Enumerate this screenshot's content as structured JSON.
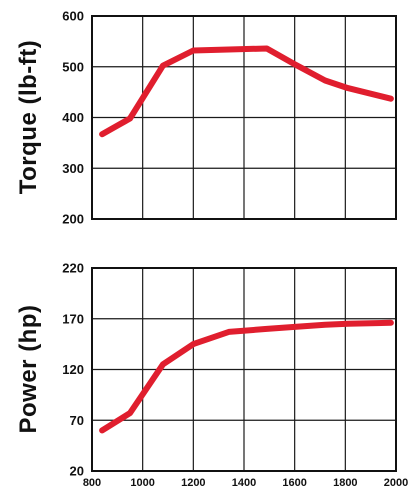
{
  "chart_data": [
    {
      "type": "line",
      "ylabel": "Torque (lb-ft)",
      "xlabel": "",
      "xlim": [
        800,
        2000
      ],
      "ylim": [
        200,
        600
      ],
      "yticks": [
        200,
        300,
        400,
        500,
        600
      ],
      "xgrid": [
        800,
        1000,
        1200,
        1400,
        1600,
        1800,
        2000
      ],
      "grid": true,
      "color": "#e01e2e",
      "x": [
        840,
        950,
        1080,
        1200,
        1340,
        1490,
        1600,
        1720,
        1810,
        1980
      ],
      "values": [
        367,
        398,
        502,
        532,
        534,
        536,
        505,
        473,
        458,
        437
      ]
    },
    {
      "type": "line",
      "ylabel": "Power (hp)",
      "xlabel": "",
      "xlim": [
        800,
        2000
      ],
      "ylim": [
        20,
        220
      ],
      "yticks": [
        20,
        70,
        120,
        170,
        220
      ],
      "xticks": [
        800,
        1000,
        1200,
        1400,
        1600,
        1800,
        2000
      ],
      "xgrid": [
        800,
        1000,
        1200,
        1400,
        1600,
        1800,
        2000
      ],
      "grid": true,
      "color": "#e01e2e",
      "x": [
        840,
        950,
        1080,
        1200,
        1340,
        1490,
        1600,
        1720,
        1810,
        1980
      ],
      "values": [
        60,
        77,
        125,
        145,
        157,
        160,
        162,
        164,
        165,
        166
      ]
    }
  ]
}
